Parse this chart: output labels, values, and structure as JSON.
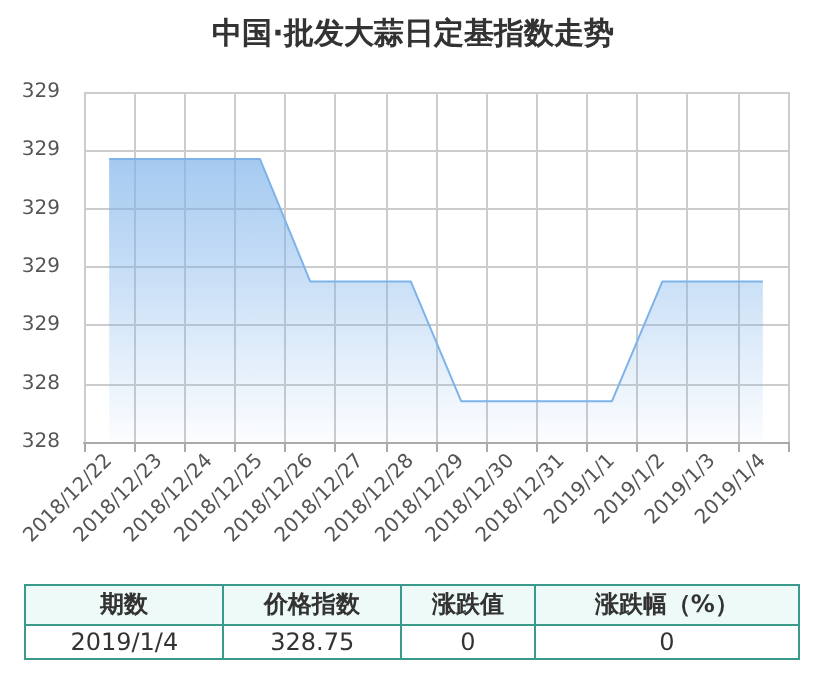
{
  "chart_data": {
    "type": "area",
    "title": "中国·批发大蒜日定基指数走势",
    "categories": [
      "2018/12/22",
      "2018/12/23",
      "2018/12/24",
      "2018/12/25",
      "2018/12/26",
      "2018/12/27",
      "2018/12/28",
      "2018/12/29",
      "2018/12/30",
      "2018/12/31",
      "2019/1/1",
      "2019/1/2",
      "2019/1/3",
      "2019/1/4"
    ],
    "series": [
      {
        "color": "#7eb3ea",
        "values": [
          329.17,
          329.17,
          329.17,
          329.17,
          328.75,
          328.75,
          328.75,
          328.34,
          328.34,
          328.34,
          328.34,
          328.75,
          328.75,
          328.75
        ]
      }
    ],
    "ylim": [
      328.2,
      329.4
    ],
    "yticks": [
      {
        "value": 328.2,
        "label": "328"
      },
      {
        "value": 328.4,
        "label": "328"
      },
      {
        "value": 328.6,
        "label": "329"
      },
      {
        "value": 328.8,
        "label": "329"
      },
      {
        "value": 329.0,
        "label": "329"
      },
      {
        "value": 329.2,
        "label": "329"
      },
      {
        "value": 329.4,
        "label": "329"
      }
    ],
    "grid": true,
    "marker": "none",
    "annotations": [
      "期数",
      "价格指数",
      "涨跌值",
      "涨跌幅（%）",
      "2019/1/4",
      "328.75",
      "0",
      "0"
    ]
  }
}
